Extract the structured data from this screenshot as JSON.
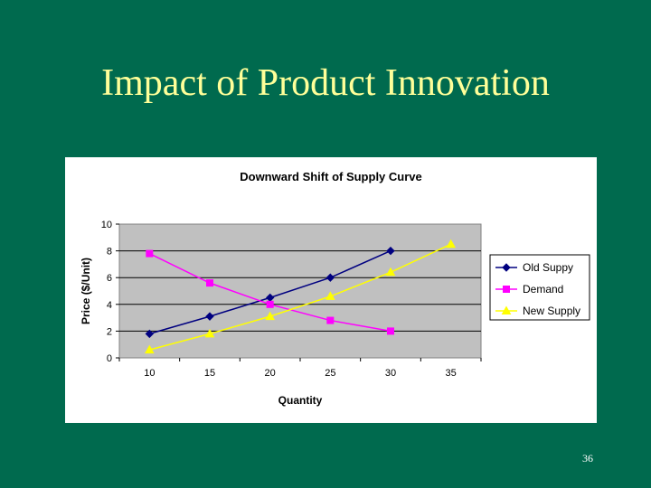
{
  "slide": {
    "title": "Impact of Product Innovation",
    "page_number": "36"
  },
  "colors": {
    "background": "#006A4E",
    "title": "#FFFF99",
    "plot_area": "#C0C0C0",
    "old_supply": "#000080",
    "demand": "#FF00FF",
    "new_supply": "#FFFF00"
  },
  "chart_data": {
    "type": "line",
    "title": "Downward Shift of Supply Curve",
    "xlabel": "Quantity",
    "ylabel": "Price ($/Unit)",
    "categories": [
      "10",
      "15",
      "20",
      "25",
      "30",
      "35"
    ],
    "ylim": [
      0,
      10
    ],
    "yticks": [
      0,
      2,
      4,
      6,
      8,
      10
    ],
    "grid": true,
    "legend": "right",
    "series": [
      {
        "name": "Old Suppy",
        "marker": "diamond",
        "color": "#000080",
        "values": [
          1.8,
          3.1,
          4.5,
          6.0,
          8.0,
          null
        ]
      },
      {
        "name": "Demand",
        "marker": "square",
        "color": "#FF00FF",
        "values": [
          7.8,
          5.6,
          4.0,
          2.8,
          2.0,
          null
        ]
      },
      {
        "name": "New Supply",
        "marker": "triangle",
        "color": "#FFFF00",
        "values": [
          0.6,
          1.8,
          3.1,
          4.6,
          6.4,
          8.5
        ]
      }
    ]
  }
}
